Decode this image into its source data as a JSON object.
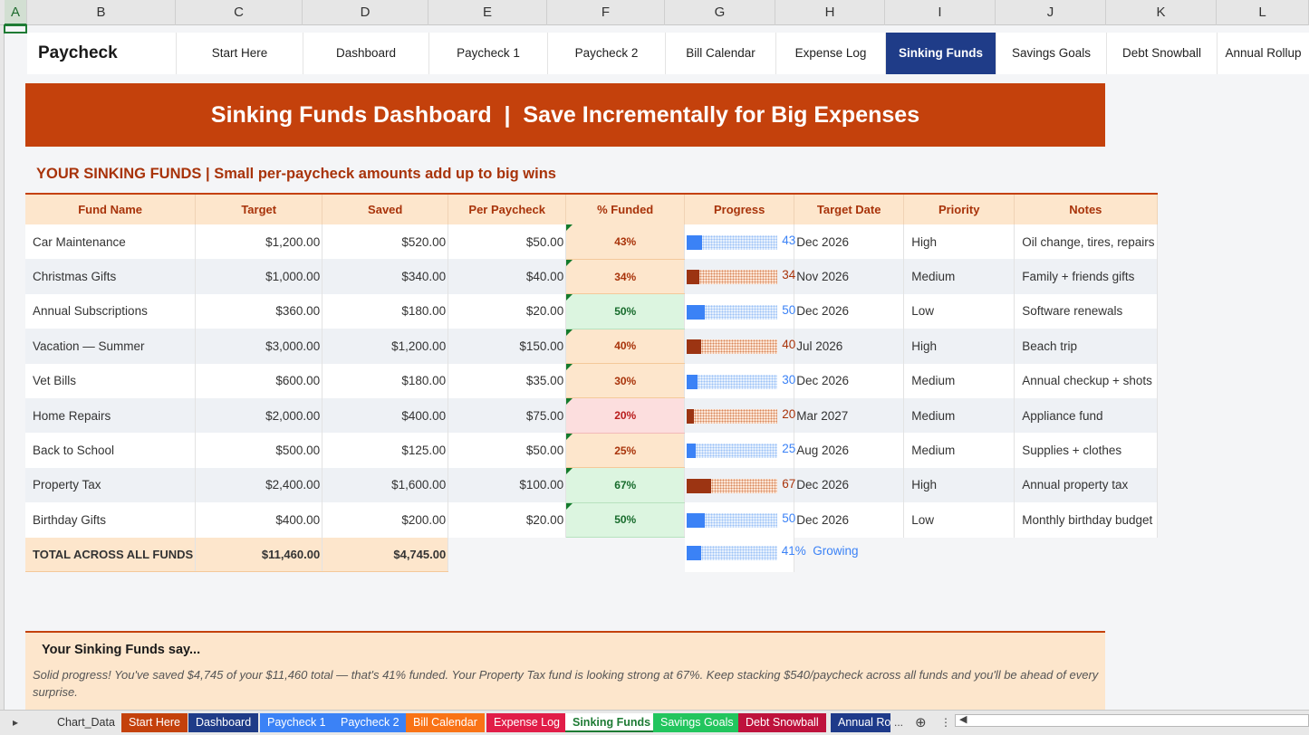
{
  "columns": [
    "A",
    "B",
    "C",
    "D",
    "E",
    "F",
    "G",
    "H",
    "I",
    "J",
    "K",
    "L"
  ],
  "brand": "Paycheck Budget",
  "nav": [
    "Start Here",
    "Dashboard",
    "Paycheck 1",
    "Paycheck 2",
    "Bill Calendar",
    "Expense Log",
    "Sinking Funds",
    "Savings Goals",
    "Debt Snowball",
    "Annual Rollup"
  ],
  "nav_active": "Sinking Funds",
  "banner": "Sinking Funds Dashboard  |  Save Incrementally for Big Expenses",
  "subtitle": "YOUR SINKING FUNDS  |  Small per-paycheck amounts add up to big wins",
  "table": {
    "headers": [
      "Fund Name",
      "Target",
      "Saved",
      "Per Paycheck",
      "% Funded",
      "Progress",
      "Target Date",
      "Priority",
      "Notes"
    ],
    "rows": [
      {
        "name": "Car Maintenance",
        "target": "$1,200.00",
        "saved": "$520.00",
        "per": "$50.00",
        "pct": "43%",
        "pct_value": 43,
        "bar_label": "43",
        "bar_color": "blue",
        "status": "orange",
        "date": "Dec 2026",
        "priority": "High",
        "notes": "Oil change, tires, repairs"
      },
      {
        "name": "Christmas Gifts",
        "target": "$1,000.00",
        "saved": "$340.00",
        "per": "$40.00",
        "pct": "34%",
        "pct_value": 34,
        "bar_label": "34",
        "bar_color": "brown",
        "status": "orange",
        "date": "Nov 2026",
        "priority": "Medium",
        "notes": "Family + friends gifts"
      },
      {
        "name": "Annual Subscriptions",
        "target": "$360.00",
        "saved": "$180.00",
        "per": "$20.00",
        "pct": "50%",
        "pct_value": 50,
        "bar_label": "50",
        "bar_color": "blue",
        "status": "green",
        "date": "Dec 2026",
        "priority": "Low",
        "notes": "Software renewals"
      },
      {
        "name": "Vacation — Summer",
        "target": "$3,000.00",
        "saved": "$1,200.00",
        "per": "$150.00",
        "pct": "40%",
        "pct_value": 40,
        "bar_label": "40",
        "bar_color": "brown",
        "status": "orange",
        "date": "Jul 2026",
        "priority": "High",
        "notes": "Beach trip"
      },
      {
        "name": "Vet Bills",
        "target": "$600.00",
        "saved": "$180.00",
        "per": "$35.00",
        "pct": "30%",
        "pct_value": 30,
        "bar_label": "30",
        "bar_color": "blue",
        "status": "orange",
        "date": "Dec 2026",
        "priority": "Medium",
        "notes": "Annual checkup + shots"
      },
      {
        "name": "Home Repairs",
        "target": "$2,000.00",
        "saved": "$400.00",
        "per": "$75.00",
        "pct": "20%",
        "pct_value": 20,
        "bar_label": "20",
        "bar_color": "brown",
        "status": "red",
        "date": "Mar 2027",
        "priority": "Medium",
        "notes": "Appliance fund"
      },
      {
        "name": "Back to School",
        "target": "$500.00",
        "saved": "$125.00",
        "per": "$50.00",
        "pct": "25%",
        "pct_value": 25,
        "bar_label": "25",
        "bar_color": "blue",
        "status": "orange",
        "date": "Aug 2026",
        "priority": "Medium",
        "notes": "Supplies + clothes"
      },
      {
        "name": "Property Tax",
        "target": "$2,400.00",
        "saved": "$1,600.00",
        "per": "$100.00",
        "pct": "67%",
        "pct_value": 67,
        "bar_label": "67",
        "bar_color": "brown",
        "status": "green",
        "date": "Dec 2026",
        "priority": "High",
        "notes": "Annual property tax"
      },
      {
        "name": "Birthday Gifts",
        "target": "$400.00",
        "saved": "$200.00",
        "per": "$20.00",
        "pct": "50%",
        "pct_value": 50,
        "bar_label": "50",
        "bar_color": "blue",
        "status": "green",
        "date": "Dec 2026",
        "priority": "Low",
        "notes": "Monthly birthday budget"
      }
    ],
    "total": {
      "label": "TOTAL ACROSS ALL FUNDS",
      "target": "$11,460.00",
      "saved": "$4,745.00",
      "pct_value": 41,
      "bar_label": "41%  Growing"
    }
  },
  "callout": {
    "title": "Your Sinking Funds say...",
    "body": "Solid progress! You've saved $4,745 of your $11,460 total — that's 41% funded. Your Property Tax fund is looking strong at 67%. Keep stacking $540/paycheck across all funds and you'll be ahead of every surprise."
  },
  "tabs": [
    {
      "label": "Chart_Data",
      "color": ""
    },
    {
      "label": "Start Here",
      "color": "#c4410c"
    },
    {
      "label": "Dashboard",
      "color": "#1f3c88"
    },
    {
      "label": "Paycheck 1",
      "color": "#3b82f6"
    },
    {
      "label": "Paycheck 2",
      "color": "#3b82f6"
    },
    {
      "label": "Bill Calendar",
      "color": "#f97316"
    },
    {
      "label": "Expense Log",
      "color": "#e11d48"
    },
    {
      "label": "Sinking Funds",
      "color": "current"
    },
    {
      "label": "Savings Goals",
      "color": "#22c55e"
    },
    {
      "label": "Debt Snowball",
      "color": "#be123c"
    },
    {
      "label": "Annual Ro",
      "color": "#1e3a8a"
    }
  ],
  "tab_more": "..."
}
